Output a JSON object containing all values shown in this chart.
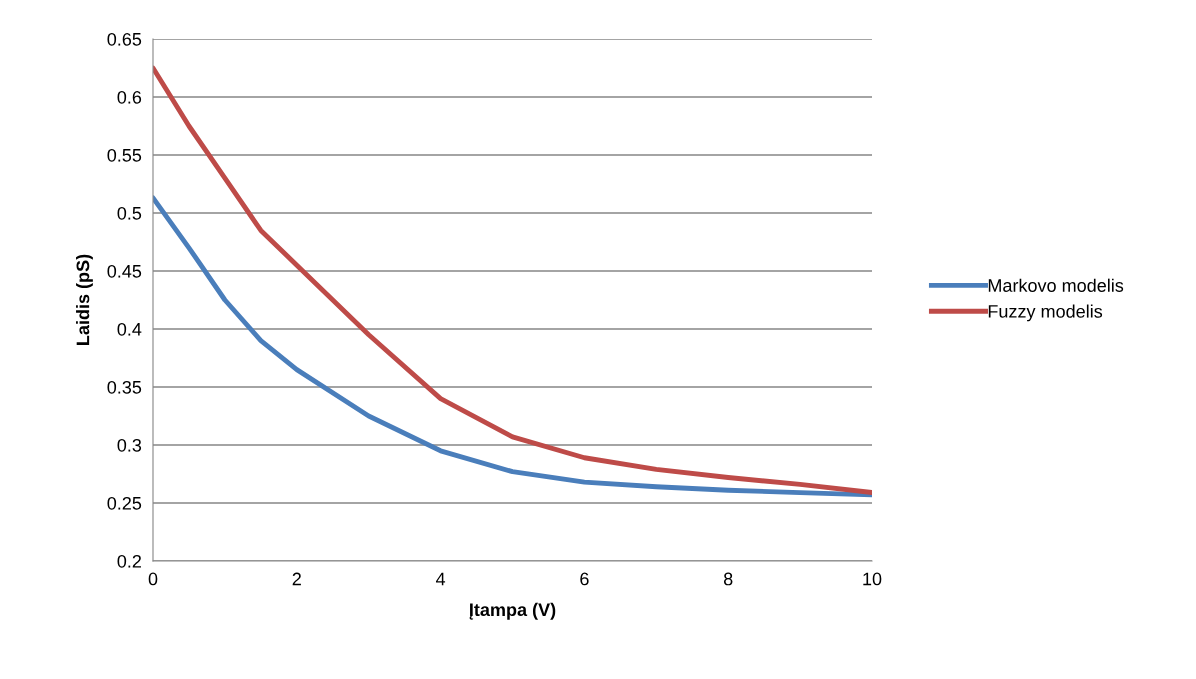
{
  "chart_data": {
    "type": "line",
    "xlabel": "Įtampa (V)",
    "ylabel": "Laidis (pS)",
    "x": [
      0,
      0.5,
      1,
      1.5,
      2,
      3,
      4,
      5,
      6,
      7,
      8,
      9,
      10
    ],
    "series": [
      {
        "name": "Markovo modelis",
        "color": "#4a7ebb",
        "values": [
          0.513,
          0.47,
          0.425,
          0.39,
          0.365,
          0.325,
          0.295,
          0.277,
          0.268,
          0.264,
          0.261,
          0.259,
          0.257
        ]
      },
      {
        "name": "Fuzzy modelis",
        "color": "#be4b48",
        "values": [
          0.625,
          0.575,
          0.53,
          0.485,
          0.455,
          0.395,
          0.34,
          0.307,
          0.289,
          0.279,
          0.272,
          0.266,
          0.259
        ]
      }
    ],
    "xlim": [
      0,
      10
    ],
    "xticks": [
      0,
      2,
      4,
      6,
      8,
      10
    ],
    "ylim": [
      0.2,
      0.65
    ],
    "yticks": [
      0.2,
      0.25,
      0.3,
      0.35,
      0.4,
      0.45,
      0.5,
      0.55,
      0.6,
      0.65
    ],
    "grid": "y",
    "legend": "right",
    "marker": "none",
    "line_style": "solid"
  }
}
